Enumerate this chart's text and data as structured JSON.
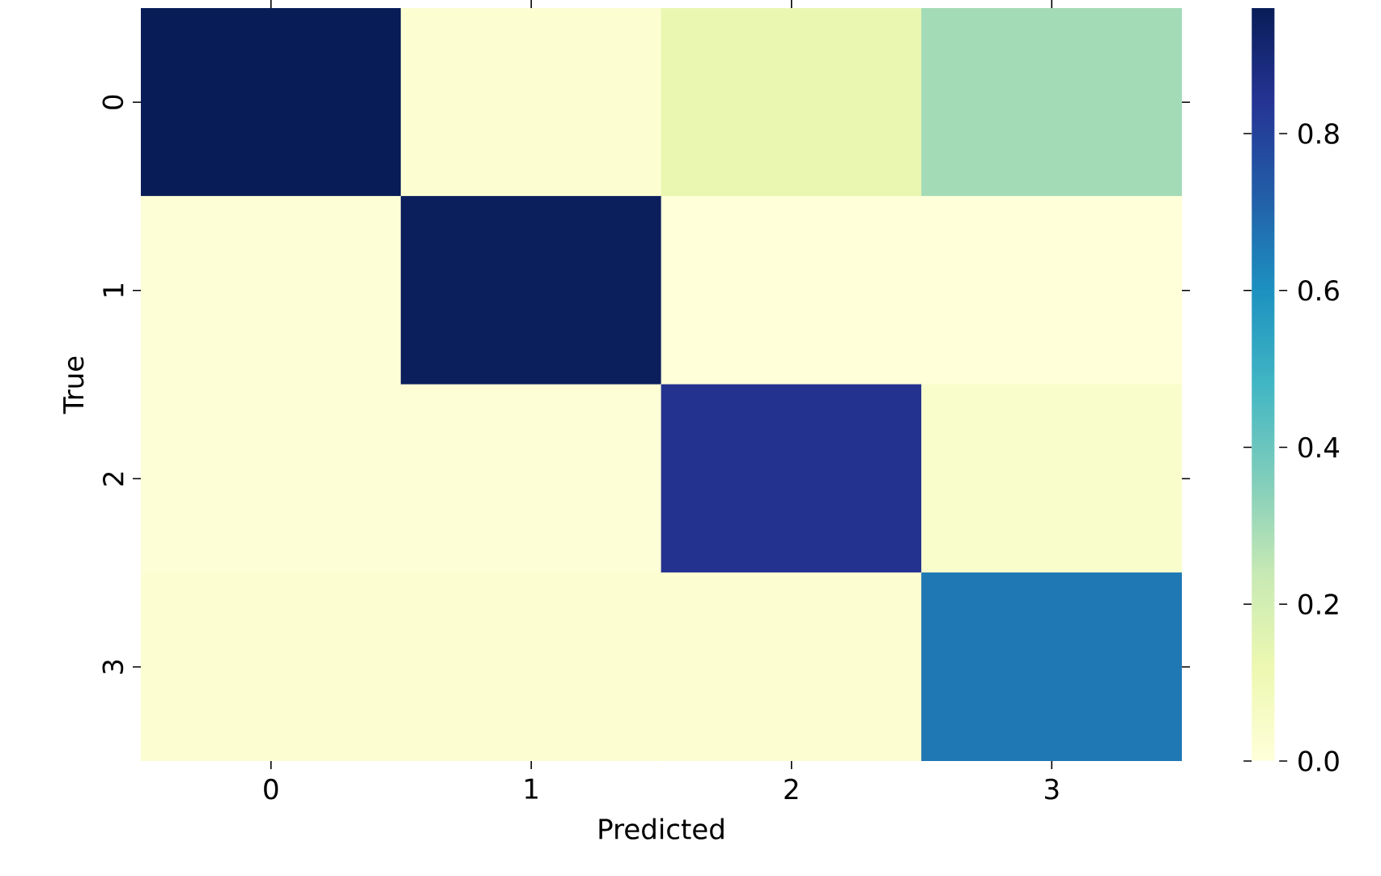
{
  "chart_data": {
    "type": "heatmap",
    "xlabel": "Predicted",
    "ylabel": "True",
    "categories": [
      "0",
      "1",
      "2",
      "3"
    ],
    "y_categories": [
      "0",
      "1",
      "2",
      "3"
    ],
    "cells": [
      [
        0.96,
        0.02,
        0.13,
        0.3
      ],
      [
        0.01,
        0.95,
        0.0,
        0.0
      ],
      [
        0.01,
        0.01,
        0.85,
        0.04
      ],
      [
        0.02,
        0.02,
        0.02,
        0.66
      ]
    ],
    "clim": [
      0,
      0.96
    ],
    "cticks": [
      {
        "value": 0,
        "label": "0.0"
      },
      {
        "value": 0.2,
        "label": "0.2"
      },
      {
        "value": 0.4,
        "label": "0.4"
      },
      {
        "value": 0.6,
        "label": "0.6"
      },
      {
        "value": 0.8,
        "label": "0.8"
      }
    ]
  }
}
